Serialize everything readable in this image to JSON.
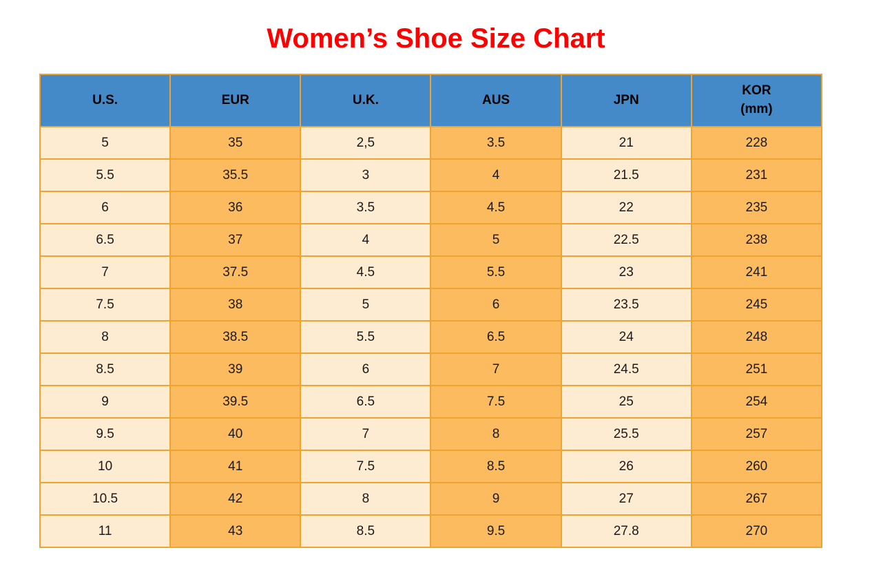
{
  "title": {
    "text": "Women’s Shoe Size Chart"
  },
  "colors": {
    "title": "#fe0000",
    "header_bg": "#4489c8",
    "header_text": "#000000",
    "cell_light": "#fdecd2",
    "cell_orange": "#fcbb5e",
    "border": "#f0a32e",
    "cell_text": "#1a1a1a"
  },
  "chart_data": {
    "type": "table",
    "title": "Women’s Shoe Size Chart",
    "columns": [
      "U.S.",
      "EUR",
      "U.K.",
      "AUS",
      "JPN",
      "KOR (mm)"
    ],
    "column_headers": [
      {
        "line1": "U.S."
      },
      {
        "line1": "EUR"
      },
      {
        "line1": "U.K."
      },
      {
        "line1": "AUS"
      },
      {
        "line1": "JPN"
      },
      {
        "line1": "KOR",
        "line2": "(mm)"
      }
    ],
    "rows": [
      [
        "5",
        "35",
        "2,5",
        "3.5",
        "21",
        "228"
      ],
      [
        "5.5",
        "35.5",
        "3",
        "4",
        "21.5",
        "231"
      ],
      [
        "6",
        "36",
        "3.5",
        "4.5",
        "22",
        "235"
      ],
      [
        "6.5",
        "37",
        "4",
        "5",
        "22.5",
        "238"
      ],
      [
        "7",
        "37.5",
        "4.5",
        "5.5",
        "23",
        "241"
      ],
      [
        "7.5",
        "38",
        "5",
        "6",
        "23.5",
        "245"
      ],
      [
        "8",
        "38.5",
        "5.5",
        "6.5",
        "24",
        "248"
      ],
      [
        "8.5",
        "39",
        "6",
        "7",
        "24.5",
        "251"
      ],
      [
        "9",
        "39.5",
        "6.5",
        "7.5",
        "25",
        "254"
      ],
      [
        "9.5",
        "40",
        "7",
        "8",
        "25.5",
        "257"
      ],
      [
        "10",
        "41",
        "7.5",
        "8.5",
        "26",
        "260"
      ],
      [
        "10.5",
        "42",
        "8",
        "9",
        "27",
        "267"
      ],
      [
        "11",
        "43",
        "8.5",
        "9.5",
        "27.8",
        "270"
      ]
    ]
  }
}
